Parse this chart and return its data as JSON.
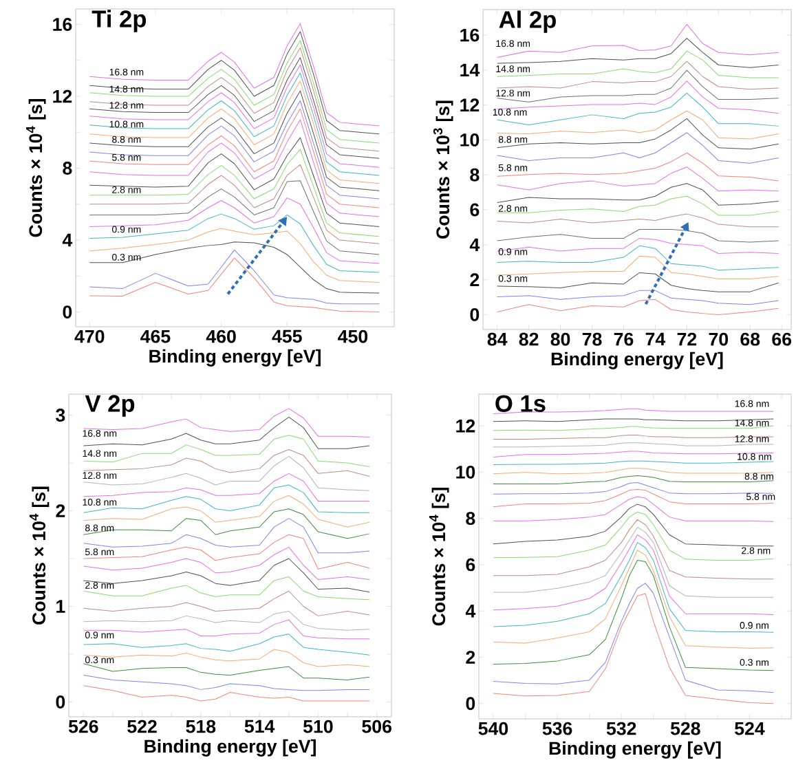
{
  "chart_data": [
    {
      "type": "line",
      "title": "Ti 2p",
      "xlabel": "Binding energy [eV]",
      "ylabel": "Counts × 10$^{4}$ [s]",
      "xlim": [
        471.06,
        446.86
      ],
      "ylim": [
        -0.82,
        16.86
      ],
      "xticks": [
        470,
        465,
        460,
        455,
        450
      ],
      "yticks": [
        0,
        {
          "value": 2,
          "label": null
        },
        4,
        {
          "value": 6,
          "label": null
        },
        8,
        {
          "value": 10,
          "label": null
        },
        12,
        {
          "value": 14,
          "label": null
        },
        16
      ],
      "x": [
        470,
        467.5,
        465,
        462.5,
        461,
        460,
        459,
        457.5,
        456,
        455,
        454,
        453,
        452,
        451,
        448
      ],
      "series": [
        {
          "color": "#f4847a",
          "values": [
            0.9,
            0.88,
            1.65,
            1.0,
            1.2,
            2.1,
            3.0,
            1.9,
            0.55,
            0.35,
            0.3,
            0.25,
            0.15,
            0.05,
            0.0
          ]
        },
        {
          "color": "#8282f0",
          "values": [
            1.4,
            1.3,
            2.15,
            1.45,
            1.55,
            2.5,
            3.45,
            2.3,
            0.95,
            0.8,
            0.75,
            0.7,
            0.5,
            0.45,
            0.45
          ]
        },
        {
          "color": "#505050",
          "values": [
            2.75,
            2.75,
            3.2,
            3.55,
            3.7,
            3.75,
            3.9,
            3.85,
            3.6,
            3.2,
            2.5,
            1.8,
            1.3,
            1.1,
            1.05
          ]
        },
        {
          "color": "#f7aa72",
          "values": [
            3.4,
            3.55,
            3.75,
            4.0,
            4.45,
            4.65,
            4.5,
            4.3,
            4.4,
            4.5,
            3.8,
            2.8,
            2.05,
            1.75,
            1.65
          ]
        },
        {
          "color": "#3fb6c6",
          "values": [
            4.1,
            4.15,
            4.35,
            4.55,
            5.2,
            5.45,
            5.2,
            4.6,
            4.8,
            5.4,
            4.9,
            3.7,
            2.65,
            2.3,
            2.2
          ]
        },
        {
          "color": "#e56fe8",
          "values": [
            4.75,
            4.8,
            4.85,
            5.1,
            5.8,
            6.2,
            5.8,
            4.95,
            5.3,
            6.35,
            6.0,
            4.7,
            3.3,
            2.85,
            2.7
          ]
        },
        {
          "color": "#6f6f6f",
          "values": [
            5.4,
            5.4,
            5.4,
            5.5,
            6.4,
            6.85,
            6.4,
            5.4,
            5.8,
            7.25,
            7.3,
            5.6,
            3.95,
            3.4,
            3.2
          ]
        },
        {
          "color": "#c08a80",
          "values": [
            6.0,
            6.0,
            6.0,
            6.05,
            7.1,
            7.6,
            7.05,
            5.8,
            6.3,
            7.6,
            8.2,
            6.4,
            4.55,
            4.0,
            3.8
          ]
        },
        {
          "color": "#86dc6e",
          "values": [
            6.5,
            6.5,
            6.5,
            6.55,
            7.65,
            8.15,
            7.6,
            6.3,
            6.85,
            8.2,
            9.05,
            7.0,
            4.95,
            4.4,
            4.2
          ]
        },
        {
          "color": "#505050",
          "values": [
            7.05,
            7.0,
            6.95,
            7.0,
            8.3,
            8.8,
            8.25,
            6.8,
            7.4,
            8.7,
            9.7,
            7.6,
            5.5,
            4.95,
            4.75
          ]
        },
        {
          "color": "#e56fe8",
          "values": [
            7.8,
            7.65,
            7.6,
            7.6,
            8.9,
            9.4,
            8.85,
            7.4,
            8.0,
            9.45,
            10.7,
            8.35,
            6.05,
            5.5,
            5.3
          ]
        },
        {
          "color": "#f4847a",
          "values": [
            8.4,
            8.25,
            8.2,
            8.2,
            9.3,
            9.8,
            9.25,
            7.8,
            8.4,
            10.05,
            11.3,
            8.95,
            6.55,
            6.0,
            5.8
          ]
        },
        {
          "color": "#8282f0",
          "values": [
            8.9,
            8.75,
            8.7,
            8.7,
            9.85,
            10.35,
            9.8,
            8.35,
            8.95,
            10.5,
            11.75,
            9.4,
            7.05,
            6.5,
            6.3
          ]
        },
        {
          "color": "#505050",
          "values": [
            9.4,
            9.25,
            9.2,
            9.2,
            10.3,
            10.8,
            10.25,
            8.8,
            9.4,
            11.05,
            12.3,
            9.95,
            7.5,
            6.95,
            6.75
          ]
        },
        {
          "color": "#f7aa72",
          "values": [
            9.9,
            9.75,
            9.7,
            9.7,
            10.8,
            11.3,
            10.75,
            9.3,
            9.9,
            11.6,
            12.85,
            10.5,
            7.9,
            7.35,
            7.15
          ]
        },
        {
          "color": "#3fb6c6",
          "values": [
            10.4,
            10.25,
            10.2,
            10.2,
            11.25,
            11.75,
            11.2,
            9.75,
            10.35,
            12.05,
            13.3,
            10.95,
            8.35,
            7.8,
            7.6
          ]
        },
        {
          "color": "#e56fe8",
          "values": [
            10.9,
            10.75,
            10.7,
            10.7,
            11.7,
            12.2,
            11.65,
            10.2,
            10.8,
            12.5,
            13.75,
            11.4,
            8.8,
            8.25,
            8.05
          ]
        },
        {
          "color": "#505050",
          "values": [
            11.3,
            11.15,
            11.1,
            11.1,
            12.1,
            12.6,
            12.05,
            10.6,
            11.2,
            12.9,
            14.15,
            11.8,
            9.3,
            8.75,
            8.55
          ]
        },
        {
          "color": "#c08a80",
          "values": [
            11.7,
            11.55,
            11.5,
            11.5,
            12.55,
            13.05,
            12.5,
            11.05,
            11.65,
            13.45,
            14.7,
            12.35,
            9.7,
            9.15,
            8.95
          ]
        },
        {
          "color": "#86dc6e",
          "values": [
            12.2,
            12.05,
            12.0,
            12.0,
            13.0,
            13.5,
            12.95,
            11.5,
            12.1,
            13.85,
            15.1,
            12.75,
            10.15,
            9.6,
            9.4
          ]
        },
        {
          "color": "#505050",
          "values": [
            12.6,
            12.45,
            12.4,
            12.4,
            13.5,
            14.0,
            13.45,
            12.0,
            12.6,
            14.35,
            15.6,
            13.25,
            10.65,
            10.1,
            9.9
          ]
        },
        {
          "color": "#e56fe8",
          "values": [
            13.1,
            12.95,
            12.9,
            12.9,
            13.95,
            14.45,
            13.9,
            12.45,
            13.05,
            14.8,
            16.05,
            13.7,
            11.1,
            10.55,
            10.35
          ]
        }
      ],
      "annotations": [
        "0.3 nm",
        "0.9 nm",
        "2.8 nm",
        "5.8 nm",
        "8.8 nm",
        "10.8 nm",
        "12.8 nm",
        "14.8 nm",
        "16.8 nm"
      ]
    },
    {
      "type": "line",
      "title": "Al 2p",
      "xlabel": "Binding energy [eV]",
      "ylabel": "Counts × 10$^{3}$ [s]",
      "xlim": [
        84.9,
        65.4
      ],
      "ylim": [
        -0.85,
        17.46
      ],
      "xticks": [
        84,
        82,
        80,
        78,
        76,
        74,
        72,
        70,
        68,
        66
      ],
      "yticks": [
        0,
        2,
        4,
        6,
        8,
        10,
        12,
        14,
        16
      ],
      "x": [
        84,
        82,
        80,
        78,
        76,
        75,
        74,
        73,
        72,
        71,
        70,
        68,
        66.2
      ],
      "series": [
        {
          "color": "#f4847a",
          "values": [
            0.15,
            0.58,
            0.22,
            0.51,
            0.44,
            0.8,
            0.87,
            0.29,
            0.15,
            0.07,
            0,
            0.15,
            0.36
          ]
        },
        {
          "color": "#8282f0",
          "values": [
            1.02,
            1.09,
            0.87,
            1.02,
            1.09,
            1.38,
            1.38,
            0.95,
            0.87,
            0.8,
            0.66,
            0.58,
            0.8
          ]
        },
        {
          "color": "#505050",
          "values": [
            1.63,
            1.6,
            1.53,
            1.82,
            1.75,
            2.4,
            2.33,
            1.68,
            1.49,
            1.38,
            1.31,
            1.31,
            1.82
          ]
        },
        {
          "color": "#f7aa72",
          "values": [
            2.26,
            2.33,
            2.41,
            2.48,
            2.48,
            3.35,
            3.28,
            2.41,
            2.33,
            2.19,
            2.04,
            2.04,
            2.19
          ]
        },
        {
          "color": "#3fb6c6",
          "values": [
            2.99,
            3.06,
            2.99,
            2.99,
            3.28,
            3.94,
            3.79,
            2.92,
            2.84,
            2.77,
            2.55,
            2.62,
            2.7
          ]
        },
        {
          "color": "#e56fe8",
          "values": [
            3.64,
            3.86,
            3.64,
            3.79,
            3.79,
            4.37,
            4.3,
            4.08,
            4.01,
            3.94,
            3.5,
            3.57,
            3.5
          ]
        },
        {
          "color": "#6f6f6f",
          "values": [
            4.23,
            4.45,
            4.59,
            4.37,
            4.37,
            4.88,
            4.88,
            4.88,
            4.81,
            4.66,
            4.23,
            4.15,
            4.23
          ]
        },
        {
          "color": "#c08a80",
          "values": [
            5.35,
            5.25,
            5.47,
            5.25,
            5.39,
            5.47,
            5.39,
            5.61,
            5.76,
            5.54,
            5.17,
            5.03,
            5.03
          ]
        },
        {
          "color": "#86dc6e",
          "values": [
            5.83,
            5.83,
            5.98,
            6.05,
            5.9,
            6.2,
            6.27,
            6.63,
            6.78,
            6.34,
            5.69,
            5.69,
            5.9
          ]
        },
        {
          "color": "#505050",
          "values": [
            6.41,
            6.71,
            6.63,
            6.63,
            6.56,
            6.56,
            6.78,
            7.29,
            7.51,
            7.14,
            6.27,
            6.34,
            6.49
          ]
        },
        {
          "color": "#e56fe8",
          "values": [
            7.43,
            7.14,
            7.51,
            7.65,
            7.36,
            7.43,
            7.51,
            8.09,
            8.45,
            7.8,
            7.07,
            7.14,
            7.07
          ]
        },
        {
          "color": "#f4847a",
          "values": [
            7.92,
            8.02,
            8.09,
            8.02,
            8.09,
            8.24,
            8.38,
            8.75,
            9.26,
            8.67,
            7.94,
            7.87,
            7.65
          ]
        },
        {
          "color": "#8282f0",
          "values": [
            9.11,
            8.82,
            8.97,
            8.97,
            9.26,
            8.97,
            9.26,
            9.84,
            10.42,
            9.69,
            8.82,
            8.67,
            8.97
          ]
        },
        {
          "color": "#505050",
          "values": [
            9.55,
            9.77,
            9.84,
            9.77,
            9.84,
            9.84,
            10.06,
            10.57,
            11.22,
            10.28,
            9.55,
            9.48,
            9.77
          ]
        },
        {
          "color": "#f7aa72",
          "values": [
            10.39,
            10.35,
            10.5,
            10.42,
            10.57,
            10.42,
            10.57,
            11.15,
            11.66,
            11.15,
            10.13,
            10.06,
            10.35
          ]
        },
        {
          "color": "#3fb6c6",
          "values": [
            11.15,
            10.86,
            11.15,
            11.44,
            11.22,
            11.52,
            11.59,
            11.88,
            12.68,
            11.88,
            10.93,
            10.93,
            10.79
          ]
        },
        {
          "color": "#e56fe8",
          "values": [
            11.76,
            11.88,
            11.95,
            12.03,
            12.03,
            12.1,
            12.03,
            12.46,
            13.37,
            12.46,
            11.81,
            11.73,
            11.52
          ]
        },
        {
          "color": "#6f6f6f",
          "values": [
            12.39,
            12.17,
            12.46,
            12.54,
            12.54,
            12.61,
            12.61,
            12.97,
            13.99,
            13.05,
            12.32,
            12.32,
            12.39
          ]
        },
        {
          "color": "#c08a80",
          "values": [
            12.97,
            13.05,
            12.97,
            13.34,
            13.27,
            13.34,
            13.34,
            13.63,
            14.5,
            13.63,
            13.05,
            12.9,
            12.97
          ]
        },
        {
          "color": "#86dc6e",
          "values": [
            13.63,
            13.7,
            13.78,
            13.78,
            14.07,
            13.92,
            13.85,
            14.07,
            15.09,
            14.58,
            13.7,
            13.56,
            13.56
          ]
        },
        {
          "color": "#505050",
          "values": [
            14.39,
            14.43,
            14.5,
            14.65,
            14.58,
            14.65,
            14.65,
            14.94,
            15.82,
            15.01,
            14.29,
            14.14,
            14.29
          ]
        },
        {
          "color": "#e56fe8",
          "values": [
            14.72,
            15.09,
            15.01,
            15.38,
            15.41,
            15.12,
            15.16,
            15.38,
            16.62,
            15.52,
            15.01,
            14.87,
            15.01
          ]
        }
      ],
      "annotations": [
        "0.3 nm",
        "0.9 nm",
        "2.8 nm",
        "5.8 nm",
        "8.8 nm",
        "10.8 nm",
        "12.8 nm",
        "14.8 nm",
        "16.8 nm"
      ]
    },
    {
      "type": "line",
      "title": "V 2p",
      "xlabel": "Binding energy [eV]",
      "ylabel": "Counts × 10$^{4}$ [s]",
      "xlim": [
        527.0,
        505.0
      ],
      "ylim": [
        -0.155,
        3.22
      ],
      "xticks": [
        526,
        {
          "value": 524,
          "label": null
        },
        522,
        {
          "value": 520,
          "label": null
        },
        518,
        {
          "value": 516,
          "label": null
        },
        514,
        {
          "value": 512,
          "label": null
        },
        510,
        {
          "value": 508,
          "label": null
        },
        506
      ],
      "yticks": [
        0,
        {
          "value": 0.5,
          "label": null
        },
        1,
        {
          "value": 1.5,
          "label": null
        },
        2,
        {
          "value": 2.5,
          "label": null
        },
        3
      ],
      "x": [
        526,
        524,
        522,
        520,
        519,
        518,
        517,
        516,
        514,
        513,
        512,
        511,
        510,
        508,
        506.5
      ],
      "series": [
        {
          "color": "#f4847a",
          "values": [
            0.17,
            0.12,
            0.05,
            0.07,
            0.05,
            0.01,
            0.03,
            0.1,
            0.05,
            0.04,
            0.05,
            0.01,
            0.01,
            0.01,
            0.01
          ]
        },
        {
          "color": "#8282f0",
          "values": [
            0.28,
            0.23,
            0.21,
            0.19,
            0.17,
            0.13,
            0.15,
            0.19,
            0.17,
            0.14,
            0.13,
            0.12,
            0.12,
            0.13,
            0.13
          ]
        },
        {
          "color": "#3f8c3f",
          "values": [
            0.4,
            0.32,
            0.35,
            0.36,
            0.36,
            0.31,
            0.29,
            0.28,
            0.33,
            0.35,
            0.37,
            0.25,
            0.25,
            0.23,
            0.26
          ]
        },
        {
          "color": "#f7aa72",
          "values": [
            0.49,
            0.47,
            0.49,
            0.48,
            0.51,
            0.47,
            0.44,
            0.43,
            0.45,
            0.55,
            0.52,
            0.41,
            0.37,
            0.39,
            0.37
          ]
        },
        {
          "color": "#3fb6c6",
          "values": [
            0.6,
            0.61,
            0.57,
            0.59,
            0.61,
            0.56,
            0.55,
            0.53,
            0.61,
            0.68,
            0.71,
            0.57,
            0.55,
            0.52,
            0.49
          ]
        },
        {
          "color": "#e56fe8",
          "values": [
            0.75,
            0.75,
            0.73,
            0.75,
            0.76,
            0.69,
            0.69,
            0.71,
            0.72,
            0.81,
            0.86,
            0.69,
            0.67,
            0.66,
            0.66
          ]
        },
        {
          "color": "#b4b4b4",
          "values": [
            0.84,
            0.85,
            0.84,
            0.85,
            0.9,
            0.87,
            0.83,
            0.85,
            0.83,
            0.92,
            0.95,
            0.81,
            0.77,
            0.75,
            0.76
          ]
        },
        {
          "color": "#c08a80",
          "values": [
            0.98,
            0.95,
            0.98,
            1.0,
            1.04,
            1.0,
            0.95,
            0.96,
            0.98,
            1.08,
            1.16,
            1.0,
            0.9,
            0.95,
            0.91
          ]
        },
        {
          "color": "#86dc6e",
          "values": [
            1.16,
            1.11,
            1.11,
            1.19,
            1.22,
            1.14,
            1.1,
            1.12,
            1.12,
            1.27,
            1.31,
            1.16,
            1.1,
            1.08,
            1.07
          ]
        },
        {
          "color": "#505050",
          "values": [
            1.27,
            1.24,
            1.27,
            1.32,
            1.36,
            1.32,
            1.24,
            1.22,
            1.27,
            1.43,
            1.5,
            1.35,
            1.18,
            1.19,
            1.15
          ]
        },
        {
          "color": "#e56fe8",
          "values": [
            1.42,
            1.38,
            1.4,
            1.46,
            1.5,
            1.46,
            1.35,
            1.36,
            1.43,
            1.54,
            1.62,
            1.43,
            1.28,
            1.31,
            1.28
          ]
        },
        {
          "color": "#f4847a",
          "values": [
            1.5,
            1.51,
            1.52,
            1.59,
            1.62,
            1.59,
            1.48,
            1.51,
            1.55,
            1.67,
            1.75,
            1.71,
            1.39,
            1.46,
            1.4
          ]
        },
        {
          "color": "#8282f0",
          "values": [
            1.66,
            1.62,
            1.63,
            1.66,
            1.75,
            1.71,
            1.64,
            1.62,
            1.64,
            1.83,
            1.92,
            1.83,
            1.56,
            1.56,
            1.58
          ]
        },
        {
          "color": "#3f8c3f",
          "values": [
            1.75,
            1.8,
            1.8,
            1.79,
            1.92,
            1.9,
            1.75,
            1.79,
            1.83,
            1.99,
            2.02,
            1.96,
            1.78,
            1.71,
            1.76
          ]
        },
        {
          "color": "#f7aa72",
          "values": [
            1.9,
            1.92,
            1.91,
            2.02,
            2.04,
            2.0,
            1.88,
            1.9,
            1.94,
            2.1,
            2.16,
            2.07,
            1.91,
            1.83,
            1.88
          ]
        },
        {
          "color": "#3fb6c6",
          "values": [
            1.98,
            2.03,
            2.02,
            2.11,
            2.15,
            2.12,
            2.02,
            2.0,
            2.06,
            2.24,
            2.27,
            2.19,
            1.99,
            1.98,
            1.98
          ]
        },
        {
          "color": "#e56fe8",
          "values": [
            2.15,
            2.16,
            2.19,
            2.2,
            2.24,
            2.22,
            2.16,
            2.16,
            2.18,
            2.31,
            2.39,
            2.31,
            2.1,
            2.1,
            2.1
          ]
        },
        {
          "color": "#b4b4b4",
          "values": [
            2.3,
            2.27,
            2.28,
            2.35,
            2.39,
            2.34,
            2.27,
            2.31,
            2.31,
            2.47,
            2.57,
            2.45,
            2.24,
            2.22,
            2.21
          ]
        },
        {
          "color": "#c08a80",
          "values": [
            2.42,
            2.43,
            2.44,
            2.48,
            2.55,
            2.52,
            2.44,
            2.4,
            2.44,
            2.58,
            2.64,
            2.58,
            2.39,
            2.42,
            2.36
          ]
        },
        {
          "color": "#86dc6e",
          "values": [
            2.52,
            2.51,
            2.6,
            2.6,
            2.69,
            2.64,
            2.58,
            2.58,
            2.59,
            2.75,
            2.79,
            2.75,
            2.52,
            2.5,
            2.46
          ]
        },
        {
          "color": "#505050",
          "values": [
            2.68,
            2.7,
            2.69,
            2.75,
            2.81,
            2.74,
            2.7,
            2.7,
            2.74,
            2.87,
            2.98,
            2.87,
            2.65,
            2.65,
            2.68
          ]
        },
        {
          "color": "#e56fe8",
          "values": [
            2.86,
            2.85,
            2.86,
            2.93,
            2.96,
            2.87,
            2.85,
            2.83,
            2.85,
            2.99,
            3.07,
            2.97,
            2.78,
            2.78,
            2.77
          ]
        }
      ],
      "annotations": [
        "0.3 nm",
        "0.9 nm",
        "2.8 nm",
        "5.8 nm",
        "8.8 nm",
        "10.8 nm",
        "12.8 nm",
        "14.8 nm",
        "16.8 nm"
      ]
    },
    {
      "type": "line",
      "title": "O 1s",
      "xlabel": "Binding energy [eV]",
      "ylabel": "Counts × 10$^{4}$ [s]",
      "xlim": [
        540.9,
        521.4
      ],
      "ylim": [
        -0.66,
        13.37
      ],
      "xticks": [
        540,
        {
          "value": 538,
          "label": null
        },
        536,
        {
          "value": 534,
          "label": null
        },
        532,
        {
          "value": 530,
          "label": null
        },
        528,
        {
          "value": 526,
          "label": null
        },
        524,
        {
          "value": 522,
          "label": null
        }
      ],
      "yticks": [
        0,
        2,
        4,
        6,
        8,
        10,
        12
      ],
      "x": [
        540,
        538,
        536,
        534,
        533,
        532,
        531.5,
        531,
        530.5,
        530,
        529,
        528,
        526,
        524,
        522.5
      ],
      "series": [
        {
          "color": "#f4847a",
          "values": [
            0.44,
            0.33,
            0.35,
            0.52,
            1.5,
            3.32,
            3.99,
            4.65,
            4.75,
            3.55,
            1.56,
            0.35,
            0.19,
            0.04,
            0.0
          ]
        },
        {
          "color": "#8282f0",
          "values": [
            0.96,
            0.87,
            0.85,
            1.01,
            1.78,
            3.55,
            4.32,
            4.98,
            5.2,
            4.76,
            2.88,
            1.01,
            0.59,
            0.55,
            0.48
          ]
        },
        {
          "color": "#3f8c3f",
          "values": [
            1.7,
            1.73,
            1.84,
            2.11,
            2.77,
            4.54,
            5.53,
            6.19,
            6.13,
            5.53,
            3.32,
            1.56,
            1.51,
            1.45,
            1.43
          ]
        },
        {
          "color": "#f7aa72",
          "values": [
            2.66,
            2.61,
            2.83,
            3.1,
            3.66,
            5.09,
            5.86,
            6.63,
            6.41,
            5.75,
            3.77,
            2.5,
            2.44,
            2.39,
            2.41
          ]
        },
        {
          "color": "#3fb6c6",
          "values": [
            3.32,
            3.38,
            3.55,
            3.88,
            4.32,
            5.53,
            6.19,
            6.96,
            6.74,
            6.19,
            4.1,
            3.16,
            3.1,
            3.1,
            3.08
          ]
        },
        {
          "color": "#e56fe8",
          "values": [
            4.04,
            4.1,
            4.21,
            4.54,
            4.98,
            6.08,
            6.68,
            7.29,
            7.07,
            6.63,
            4.65,
            3.88,
            3.88,
            3.88,
            3.84
          ]
        },
        {
          "color": "#b4b4b4",
          "values": [
            4.81,
            4.81,
            4.98,
            5.25,
            5.53,
            6.52,
            7.07,
            7.62,
            7.4,
            6.96,
            5.09,
            4.65,
            4.59,
            4.59,
            4.59
          ]
        },
        {
          "color": "#c08a80",
          "values": [
            5.53,
            5.53,
            5.58,
            5.91,
            6.19,
            6.96,
            7.51,
            7.95,
            7.73,
            7.23,
            5.75,
            5.47,
            5.42,
            5.38,
            5.38
          ]
        },
        {
          "color": "#86dc6e",
          "values": [
            6.3,
            6.32,
            6.35,
            6.63,
            6.85,
            7.62,
            8.06,
            8.28,
            8.17,
            7.73,
            6.63,
            6.24,
            6.19,
            6.19,
            6.26
          ]
        },
        {
          "color": "#505050",
          "values": [
            6.9,
            7.01,
            7.07,
            7.23,
            7.45,
            8.06,
            8.44,
            8.61,
            8.5,
            8.17,
            7.29,
            6.9,
            6.85,
            6.81,
            6.81
          ]
        },
        {
          "color": "#e56fe8",
          "values": [
            7.89,
            7.89,
            7.95,
            8.06,
            8.17,
            8.61,
            8.83,
            8.94,
            8.88,
            8.61,
            8.06,
            7.89,
            7.89,
            7.89,
            7.86
          ]
        },
        {
          "color": "#f4847a",
          "values": [
            8.5,
            8.63,
            8.63,
            8.66,
            8.77,
            9.05,
            9.22,
            9.25,
            9.22,
            9.05,
            8.72,
            8.63,
            8.63,
            8.63,
            8.66
          ]
        },
        {
          "color": "#8282f0",
          "values": [
            9.05,
            9.07,
            9.07,
            9.1,
            9.16,
            9.38,
            9.52,
            9.55,
            9.44,
            9.33,
            9.1,
            9.07,
            9.07,
            9.1,
            9.08
          ]
        },
        {
          "color": "#3f8c3f",
          "values": [
            9.49,
            9.49,
            9.49,
            9.58,
            9.6,
            9.77,
            9.82,
            9.85,
            9.82,
            9.77,
            9.6,
            9.58,
            9.58,
            9.58,
            9.63
          ]
        },
        {
          "color": "#f7aa72",
          "values": [
            9.93,
            9.99,
            9.93,
            9.95,
            9.99,
            10.1,
            10.17,
            10.17,
            10.15,
            10.1,
            9.99,
            9.95,
            9.95,
            9.95,
            9.99
          ]
        },
        {
          "color": "#3fb6c6",
          "values": [
            10.32,
            10.34,
            10.34,
            10.37,
            10.39,
            10.46,
            10.48,
            10.48,
            10.48,
            10.46,
            10.43,
            10.39,
            10.39,
            10.43,
            10.46
          ]
        },
        {
          "color": "#e56fe8",
          "values": [
            10.65,
            10.76,
            10.76,
            10.79,
            10.81,
            10.87,
            10.9,
            10.9,
            10.87,
            10.83,
            10.81,
            10.79,
            10.79,
            10.81,
            10.83
          ]
        },
        {
          "color": "#b4b4b4",
          "values": [
            11.09,
            11.09,
            11.12,
            11.14,
            11.16,
            11.25,
            11.27,
            11.27,
            11.25,
            11.23,
            11.2,
            11.14,
            11.14,
            11.2,
            11.2
          ]
        },
        {
          "color": "#c08a80",
          "values": [
            11.42,
            11.42,
            11.45,
            11.49,
            11.49,
            11.58,
            11.6,
            11.6,
            11.56,
            11.53,
            11.53,
            11.49,
            11.49,
            11.53,
            11.53
          ]
        },
        {
          "color": "#86dc6e",
          "values": [
            11.8,
            11.82,
            11.8,
            11.86,
            11.89,
            11.93,
            11.97,
            11.97,
            11.93,
            11.91,
            11.89,
            11.89,
            11.89,
            11.89,
            12.0
          ]
        },
        {
          "color": "#505050",
          "values": [
            12.19,
            12.22,
            12.19,
            12.26,
            12.3,
            12.3,
            12.3,
            12.3,
            12.26,
            12.26,
            12.24,
            12.22,
            12.22,
            12.26,
            12.3
          ]
        },
        {
          "color": "#e56fe8",
          "values": [
            12.52,
            12.6,
            12.6,
            12.63,
            12.66,
            12.71,
            12.74,
            12.74,
            12.68,
            12.66,
            12.63,
            12.63,
            12.63,
            12.63,
            12.63
          ]
        }
      ],
      "annotations": [
        "0.3 nm",
        "0.9 nm",
        "2.8 nm",
        "5.8 nm",
        "8.8 nm",
        "10.8 nm",
        "12.8 nm",
        "14.8 nm",
        "16.8 nm"
      ]
    }
  ]
}
